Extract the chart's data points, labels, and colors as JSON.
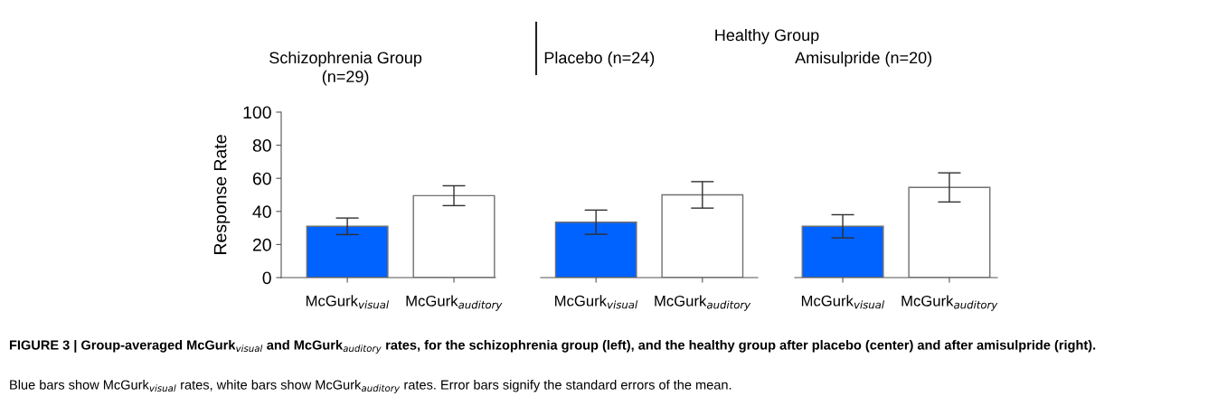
{
  "chart_data": [
    {
      "type": "bar",
      "title": "Schizophrenia Group\n(n=29)",
      "ylabel": "Response Rate",
      "categories": [
        "McGurk$_{visual}$",
        "McGurk$_{auditory}$"
      ],
      "values": [
        31,
        49.5
      ],
      "errors": [
        5,
        6
      ],
      "colors": [
        "#0062ff",
        "#ffffff"
      ],
      "ylim": [
        0,
        100
      ],
      "yticks": [
        0,
        20,
        40,
        60,
        80,
        100
      ],
      "grid": false,
      "annotations": [
        "FIGURE 3 | Group-averaged McGurk$_{visual}$ and McGurk$_{auditory}$ rates, for the schizophrenia group (left), and the healthy group after placebo (center) and after amisulpride (right).",
        "Blue bars show McGurk$_{visual}$ rates, white bars show McGurk$_{auditory}$ rates. Error bars signify the standard errors of the mean."
      ]
    },
    {
      "type": "bar",
      "title": "Placebo (n=24)",
      "categories": [
        "McGurk$_{visual}$",
        "McGurk$_{auditory}$"
      ],
      "values": [
        33.5,
        50
      ],
      "errors": [
        7.3,
        8
      ],
      "colors": [
        "#0062ff",
        "#ffffff"
      ],
      "ylim": [
        0,
        100
      ],
      "tick_labels": "x",
      "grid": false,
      "annotations": [
        "Healthy Group"
      ]
    },
    {
      "type": "bar",
      "title": "Amisulpride (n=20)",
      "categories": [
        "McGurk$_{visual}$",
        "McGurk$_{auditory}$"
      ],
      "values": [
        31,
        54.5
      ],
      "errors": [
        7,
        8.8
      ],
      "colors": [
        "#0062ff",
        "#ffffff"
      ],
      "ylim": [
        0,
        100
      ],
      "tick_labels": "x",
      "grid": false
    }
  ]
}
